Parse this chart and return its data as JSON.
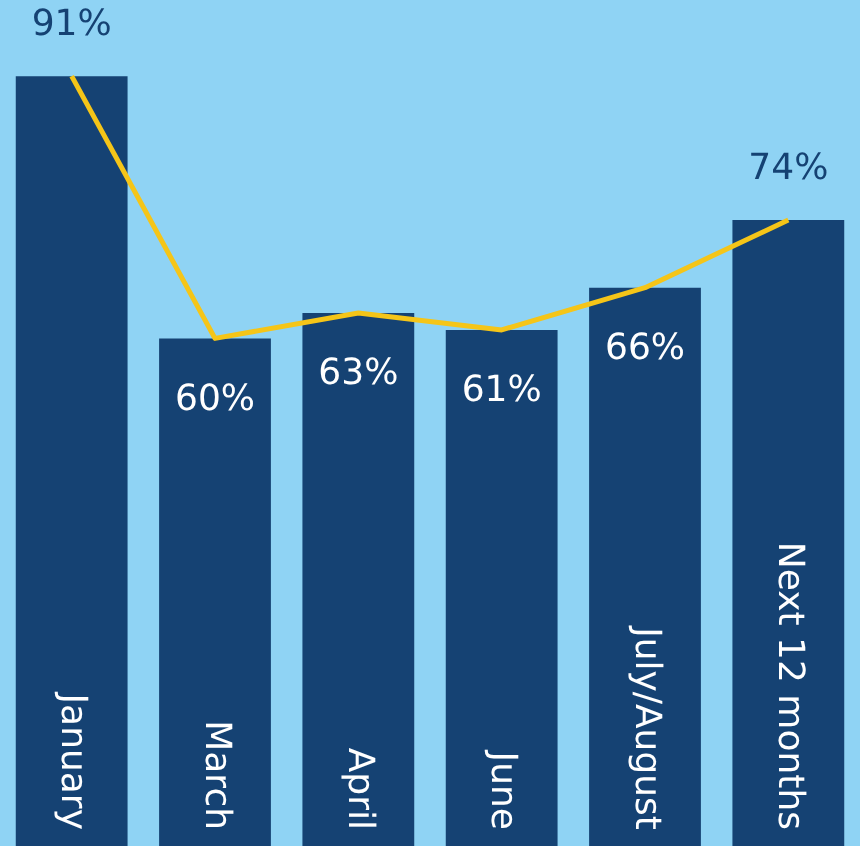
{
  "chart_data": {
    "type": "bar",
    "categories": [
      "January",
      "March",
      "April",
      "June",
      "July/August",
      "Next 12 months"
    ],
    "series": [
      {
        "color": "#154273",
        "values": [
          91,
          60,
          63,
          61,
          66,
          74
        ],
        "value_labels": [
          null,
          "60%",
          "63%",
          "61%",
          "66%",
          null
        ]
      },
      {
        "type": "line",
        "color": "#f5c518",
        "values": [
          91,
          60,
          63,
          61,
          66,
          74
        ],
        "value_labels": [
          "91%",
          null,
          null,
          null,
          null,
          "74%"
        ]
      }
    ],
    "legend": false,
    "tick_labels": "x",
    "marker": "none"
  }
}
